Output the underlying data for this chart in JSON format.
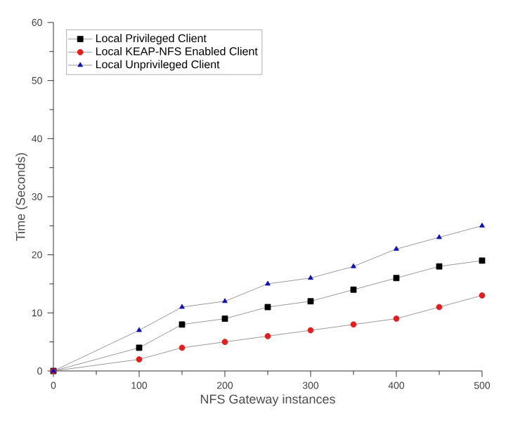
{
  "chart_data": {
    "type": "line",
    "xlabel": "NFS Gateway instances",
    "ylabel": "Time (Seconds)",
    "x": [
      0,
      100,
      150,
      200,
      250,
      300,
      350,
      400,
      450,
      500
    ],
    "series": [
      {
        "name": "Local Privileged Client",
        "color": "#000000",
        "marker": "square",
        "values": [
          0,
          4,
          8,
          9,
          11,
          12,
          14,
          16,
          18,
          19
        ]
      },
      {
        "name": "Local KEAP-NFS Enabled Client",
        "color": "#e02020",
        "marker": "circle",
        "values": [
          0,
          2,
          4,
          5,
          6,
          7,
          8,
          9,
          11,
          13
        ]
      },
      {
        "name": "Local Unprivileged Client",
        "color": "#1010b0",
        "marker": "triangle",
        "values": [
          0,
          7,
          11,
          12,
          15,
          16,
          18,
          21,
          23,
          25
        ]
      }
    ],
    "xlim": [
      0,
      500
    ],
    "xticks": [
      0,
      100,
      200,
      300,
      400,
      500
    ],
    "ylim": [
      0,
      60
    ],
    "yticks": [
      0,
      10,
      20,
      30,
      40,
      50,
      60
    ],
    "legend": "top left",
    "grid": false,
    "line_style": "solid"
  }
}
